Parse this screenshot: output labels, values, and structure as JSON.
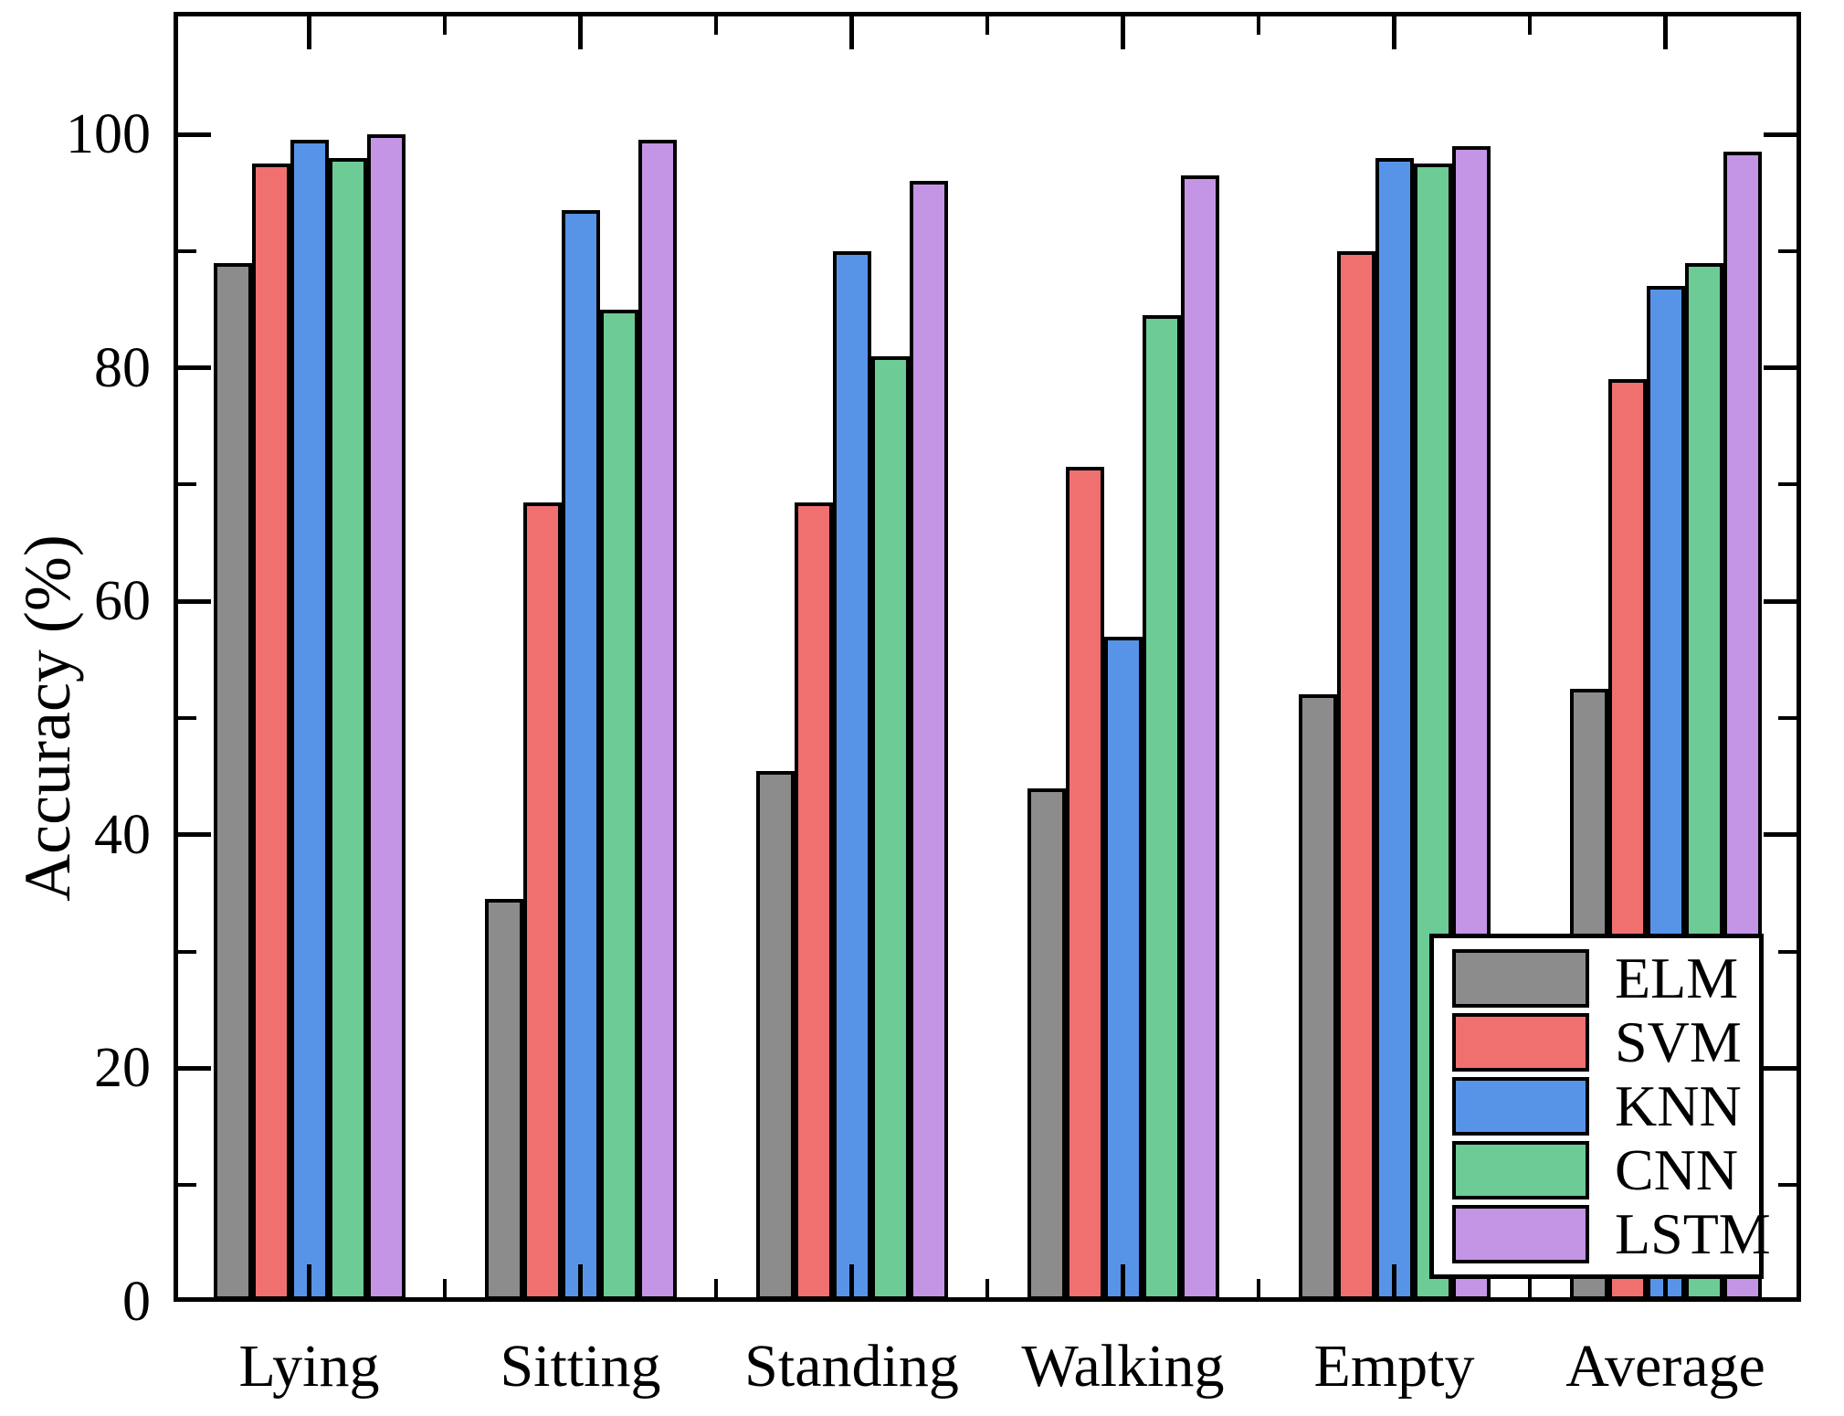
{
  "chart_data": {
    "type": "bar",
    "title": "",
    "xlabel": "",
    "ylabel": "Accuracy (%)",
    "ylim": [
      0,
      110
    ],
    "yticks_major": [
      0,
      20,
      40,
      60,
      80,
      100
    ],
    "yticks_minor": [
      10,
      30,
      50,
      70,
      90
    ],
    "grid": "off",
    "legend_position": "inside-bottom-right",
    "categories": [
      "Lying",
      "Sitting",
      "Standing",
      "Walking",
      "Empty",
      "Average"
    ],
    "series": [
      {
        "name": "ELM",
        "color": "#8C8C8C",
        "values": [
          89,
          34.5,
          45.5,
          44,
          52,
          52.5
        ]
      },
      {
        "name": "SVM",
        "color": "#F07070",
        "values": [
          97.5,
          68.5,
          68.5,
          71.5,
          90,
          79
        ]
      },
      {
        "name": "KNN",
        "color": "#5794E8",
        "values": [
          99.5,
          93.5,
          90,
          57,
          98,
          87
        ]
      },
      {
        "name": "CNN",
        "color": "#6DCB96",
        "values": [
          98,
          85,
          81,
          84.5,
          97.5,
          89
        ]
      },
      {
        "name": "LSTM",
        "color": "#C495E5",
        "values": [
          100,
          99.5,
          96,
          96.5,
          99,
          98.5
        ]
      }
    ],
    "bar_outline_color": "#000000",
    "background_color": "#FFFFFF"
  }
}
